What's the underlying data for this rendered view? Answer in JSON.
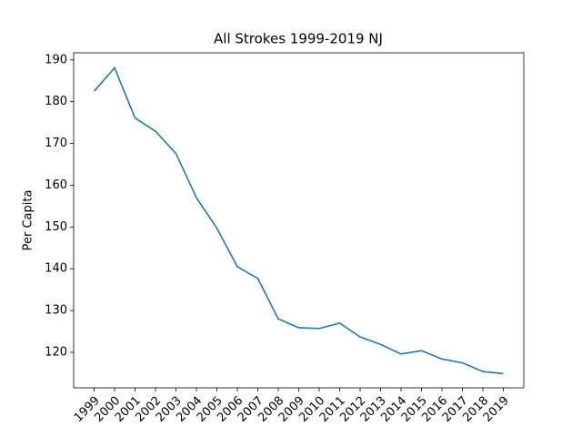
{
  "chart_data": {
    "type": "line",
    "title": "All Strokes 1999-2019 NJ",
    "y_label": "Per Capita",
    "categories": [
      "1999",
      "2000",
      "2001",
      "2002",
      "2003",
      "2004",
      "2005",
      "2006",
      "2007",
      "2008",
      "2009",
      "2010",
      "2011",
      "2012",
      "2013",
      "2014",
      "2015",
      "2016",
      "2017",
      "2018",
      "2019"
    ],
    "values": [
      182.5,
      188.1,
      176.1,
      172.9,
      167.6,
      157.0,
      149.7,
      140.5,
      137.7,
      128.0,
      125.9,
      125.7,
      127.0,
      123.7,
      121.9,
      119.6,
      120.4,
      118.4,
      117.5,
      115.4,
      114.9
    ],
    "color": "#1f77b4",
    "ylim": [
      111.5,
      191.7
    ],
    "yticks": [
      120,
      130,
      140,
      150,
      160,
      170,
      180,
      190
    ]
  }
}
